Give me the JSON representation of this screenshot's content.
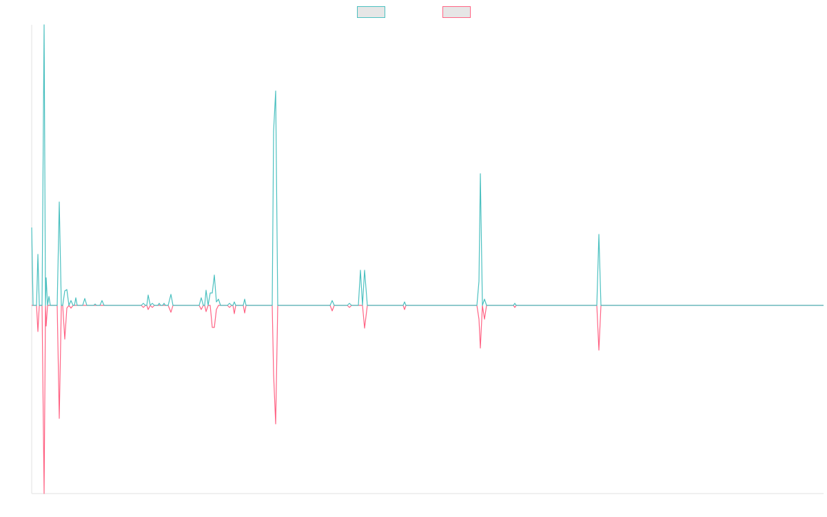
{
  "chart_data": {
    "type": "line",
    "legend": "top",
    "xlim": [
      0,
      1149
    ],
    "ylim": [
      -273,
      407
    ],
    "x": [
      0,
      2,
      7,
      9,
      11,
      15,
      18,
      20,
      21,
      23,
      25,
      27,
      37,
      40,
      43,
      45,
      48,
      51,
      54,
      57,
      60,
      62,
      64,
      66,
      74,
      77,
      80,
      90,
      92,
      94,
      99,
      102,
      105,
      159,
      162,
      165,
      167,
      169,
      172,
      175,
      178,
      183,
      185,
      187,
      190,
      192,
      194,
      198,
      202,
      205,
      243,
      246,
      249,
      251,
      253,
      256,
      259,
      262,
      265,
      268,
      271,
      274,
      284,
      287,
      290,
      292,
      294,
      296,
      307,
      309,
      311,
      349,
      351,
      354,
      357,
      433,
      436,
      439,
      458,
      461,
      464,
      474,
      477,
      480,
      483,
      487,
      539,
      541,
      543,
      646,
      649,
      651,
      654,
      657,
      660,
      699,
      701,
      703,
      820,
      823,
      826,
      1149
    ],
    "series": [
      {
        "color": "#4bc0c0",
        "values": [
          113,
          0,
          0,
          74,
          0,
          0,
          407,
          0,
          40,
          0,
          13,
          0,
          0,
          150,
          0,
          0,
          21,
          23,
          0,
          7,
          0,
          0,
          11,
          0,
          0,
          10,
          0,
          0,
          2,
          0,
          0,
          7,
          0,
          0,
          3,
          0,
          0,
          15,
          0,
          3,
          0,
          0,
          3,
          0,
          0,
          3,
          0,
          0,
          16,
          0,
          0,
          11,
          0,
          0,
          22,
          0,
          18,
          18,
          44,
          5,
          9,
          0,
          0,
          3,
          0,
          0,
          5,
          0,
          0,
          9,
          0,
          0,
          253,
          311,
          0,
          0,
          7,
          0,
          0,
          3,
          0,
          0,
          51,
          0,
          51,
          0,
          0,
          5,
          0,
          0,
          35,
          191,
          0,
          9,
          0,
          0,
          3,
          0,
          0,
          103,
          0,
          0
        ]
      },
      {
        "color": "#ff6384",
        "values": [
          0,
          0,
          0,
          -38,
          0,
          0,
          -273,
          0,
          -30,
          0,
          0,
          0,
          0,
          -164,
          0,
          0,
          -49,
          -4,
          0,
          -4,
          0,
          0,
          0,
          0,
          0,
          0,
          0,
          0,
          0,
          0,
          0,
          0,
          0,
          0,
          -3,
          0,
          0,
          -6,
          0,
          -3,
          0,
          0,
          0,
          0,
          0,
          0,
          0,
          0,
          -10,
          0,
          0,
          -6,
          0,
          0,
          -9,
          0,
          0,
          -32,
          -32,
          -6,
          0,
          0,
          0,
          -3,
          0,
          0,
          -12,
          0,
          0,
          -11,
          0,
          0,
          -100,
          -172,
          0,
          0,
          -8,
          0,
          0,
          -3,
          0,
          0,
          0,
          0,
          -33,
          0,
          0,
          -6,
          0,
          0,
          -20,
          -62,
          0,
          -20,
          0,
          0,
          -3,
          0,
          0,
          -65,
          0,
          0
        ]
      }
    ]
  }
}
